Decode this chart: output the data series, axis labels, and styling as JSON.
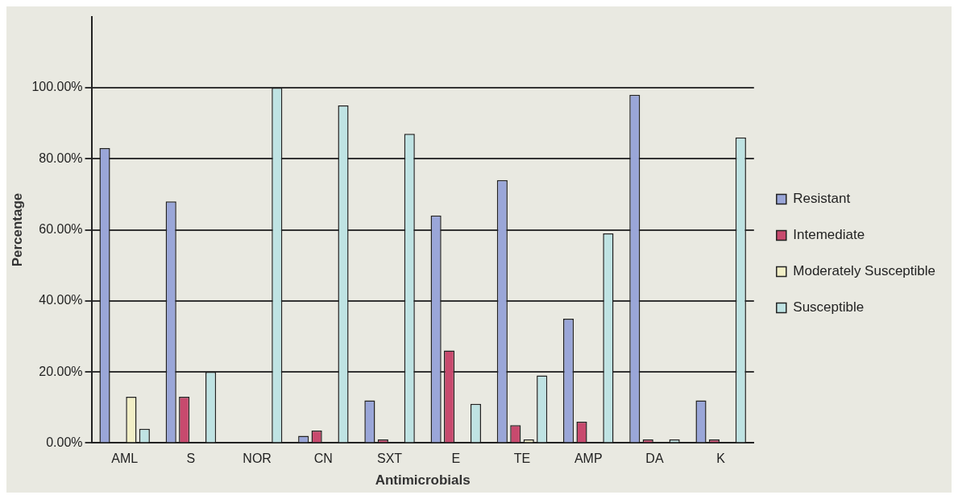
{
  "chart_data": {
    "type": "bar",
    "xlabel": "Antimicrobials",
    "ylabel": "Percentage",
    "categories": [
      "AML",
      "S",
      "NOR",
      "CN",
      "SXT",
      "E",
      "TE",
      "AMP",
      "DA",
      "K"
    ],
    "series": [
      {
        "name": "Resistant",
        "color": "#9aa6d8",
        "values": [
          83,
          68,
          0,
          2,
          12,
          64,
          74,
          35,
          98,
          12
        ]
      },
      {
        "name": "Intemediate",
        "color": "#c84a6e",
        "values": [
          0,
          13,
          0,
          3.5,
          1,
          26,
          5,
          6,
          1,
          1
        ]
      },
      {
        "name": "Moderately Susceptible",
        "color": "#f2efc6",
        "values": [
          13,
          0,
          0,
          0,
          0,
          0,
          1,
          0,
          0,
          0
        ]
      },
      {
        "name": "Susceptible",
        "color": "#bfe3e3",
        "values": [
          4,
          20,
          100,
          95,
          87,
          11,
          19,
          59,
          1,
          86
        ]
      }
    ],
    "ylim": [
      0,
      120
    ],
    "yticks": [
      {
        "value": 0,
        "label": "0.00%"
      },
      {
        "value": 20,
        "label": "20.00%"
      },
      {
        "value": 40,
        "label": "40.00%"
      },
      {
        "value": 60,
        "label": "60.00%"
      },
      {
        "value": 80,
        "label": "80.00%"
      },
      {
        "value": 100,
        "label": "100.00%"
      }
    ],
    "grid": "y",
    "legend": "right"
  }
}
